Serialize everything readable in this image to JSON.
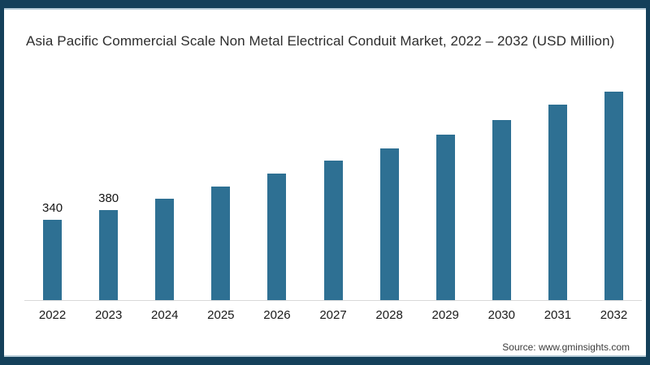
{
  "title": "Asia Pacific Commercial Scale Non Metal Electrical Conduit Market, 2022 – 2032 (USD Million)",
  "source": "Source: www.gminsights.com",
  "colors": {
    "frame_border": "#14405A",
    "frame_inner_line": "#B8CDD9",
    "bar_fill": "#2E7093",
    "axis_line": "#D9D9D9",
    "title_text": "#2D2D2D",
    "axis_text": "#1A1A1A",
    "source_text": "#3D3D3D"
  },
  "chart_data": {
    "type": "bar",
    "title": "Asia Pacific Commercial Scale Non Metal Electrical Conduit Market, 2022 – 2032 (USD Million)",
    "xlabel": "",
    "ylabel": "USD Million",
    "categories": [
      "2022",
      "2023",
      "2024",
      "2025",
      "2026",
      "2027",
      "2028",
      "2029",
      "2030",
      "2031",
      "2032"
    ],
    "values": [
      340,
      380,
      430,
      480,
      535,
      590,
      640,
      700,
      760,
      825,
      885
    ],
    "data_labels": [
      "340",
      "380",
      "",
      "",
      "",
      "",
      "",
      "",
      "",
      "",
      ""
    ],
    "ylim": [
      0,
      960
    ],
    "grid": false,
    "legend": false,
    "bar_color": "#2E7093"
  }
}
